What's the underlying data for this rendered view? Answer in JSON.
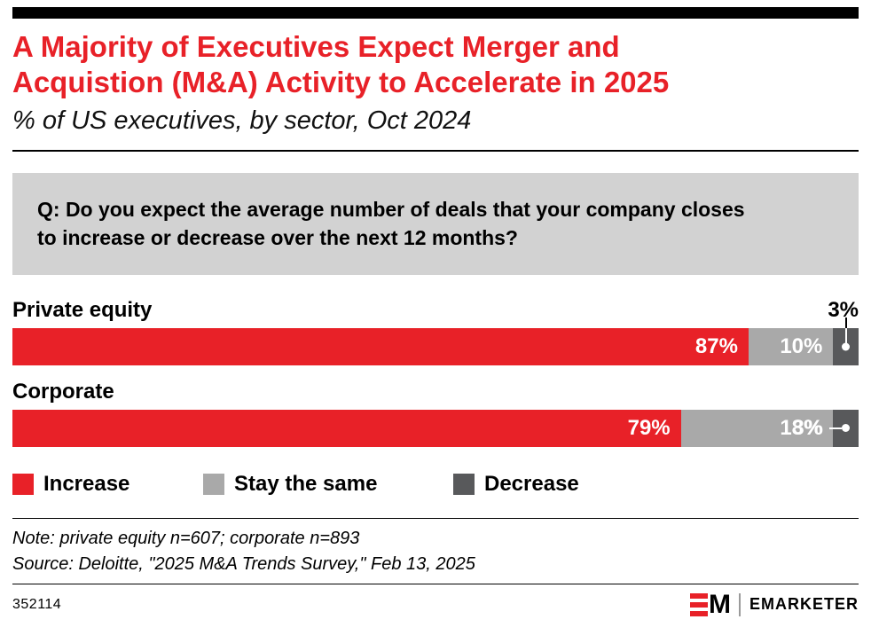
{
  "colors": {
    "red": "#e82128",
    "light_gray": "#a9a9a9",
    "dark_gray": "#58595b",
    "question_box_gray": "#d2d2d2"
  },
  "header": {
    "title_lines": [
      "A Majority of Executives Expect Merger and",
      "Acquistion (M&A) Activity to Accelerate in 2025"
    ],
    "subtitle": "% of US executives, by sector, Oct 2024"
  },
  "question_lines": [
    "Q: Do you expect the average number of deals that your company closes",
    "to increase or decrease over the next 12 months?"
  ],
  "chart_data": {
    "type": "bar",
    "orientation": "horizontal",
    "stacked": true,
    "value_format": "percent",
    "categories": [
      "Private equity",
      "Corporate"
    ],
    "series": [
      {
        "name": "Increase",
        "color": "#e82128",
        "values": [
          87,
          79
        ]
      },
      {
        "name": "Stay the same",
        "color": "#a9a9a9",
        "values": [
          10,
          18
        ]
      },
      {
        "name": "Decrease",
        "color": "#58595b",
        "values": [
          3,
          3
        ]
      }
    ],
    "value_labels": [
      [
        "87%",
        "10%",
        "3%"
      ],
      [
        "79%",
        "18%",
        "3%"
      ]
    ],
    "xlim": [
      0,
      100
    ],
    "legend_position": "bottom",
    "grid": false
  },
  "notes": {
    "note": "Note: private equity n=607; corporate n=893",
    "source": "Source: Deloitte, \"2025 M&A Trends Survey,\" Feb 13, 2025"
  },
  "footer": {
    "chart_id": "352114",
    "brand": "EMARKETER",
    "logo_m": "M"
  }
}
